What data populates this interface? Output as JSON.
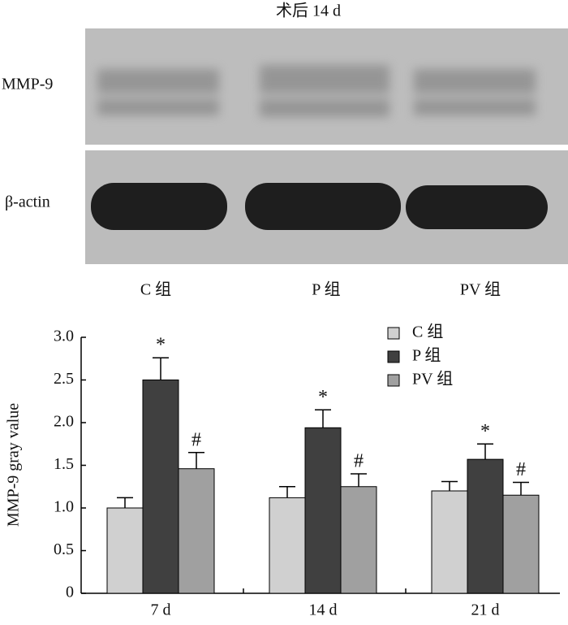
{
  "blot": {
    "title": "术后 14 d",
    "rows": [
      "MMP-9",
      "β-actin"
    ],
    "lanes": [
      "C 组",
      "P 组",
      "PV 组"
    ]
  },
  "chart_data": {
    "type": "bar",
    "ylabel": "MMP-9 gray value",
    "categories": [
      "7 d",
      "14 d",
      "21 d"
    ],
    "series": [
      {
        "name": "C 组",
        "color": "#d0d0d0",
        "values": [
          1.0,
          1.12,
          1.2
        ],
        "errors": [
          0.12,
          0.13,
          0.11
        ]
      },
      {
        "name": "P 组",
        "color": "#404040",
        "values": [
          2.5,
          1.94,
          1.57
        ],
        "errors": [
          0.26,
          0.21,
          0.18
        ],
        "significance": [
          "*",
          "*",
          "*"
        ]
      },
      {
        "name": "PV 组",
        "color": "#a0a0a0",
        "values": [
          1.46,
          1.25,
          1.15
        ],
        "errors": [
          0.19,
          0.15,
          0.15
        ],
        "significance": [
          "#",
          "#",
          "#"
        ]
      }
    ],
    "ylim": [
      0,
      3
    ],
    "yticks": [
      0,
      0.5,
      {
        "value": 1,
        "label": "1.0"
      },
      1.5,
      {
        "value": 2,
        "label": "2.0"
      },
      2.5,
      {
        "value": 3,
        "label": "3.0"
      }
    ],
    "legend": "upper right"
  }
}
